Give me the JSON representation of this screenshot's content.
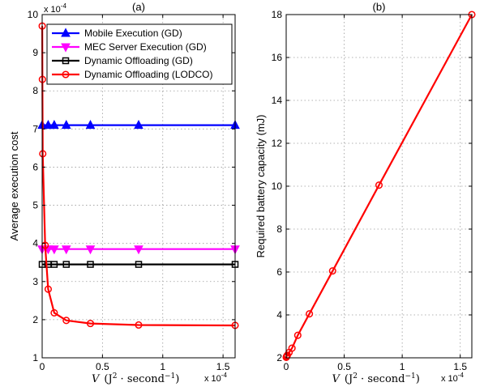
{
  "chart_data": [
    {
      "type": "line",
      "panel_title": "(a)",
      "ylabel": "Average execution cost",
      "xlabel": "V (J² · second⁻¹)",
      "xlabel_parts": {
        "var": "V",
        "open": "(J",
        "sq": "2",
        "mid": " · second",
        "neg1": "−1",
        "close": ")"
      },
      "x_multiplier": "x 10",
      "x_multiplier_exp": "-4",
      "y_multiplier": "x 10",
      "y_multiplier_exp": "-4",
      "xlim": [
        0,
        1.6
      ],
      "ylim": [
        1,
        10
      ],
      "xticks": [
        0,
        0.5,
        1,
        1.5
      ],
      "xtick_labels": [
        "0",
        "0.5",
        "1",
        "1.5"
      ],
      "yticks": [
        1,
        2,
        3,
        4,
        5,
        6,
        7,
        8,
        9,
        10
      ],
      "ytick_labels": [
        "1",
        "2",
        "3",
        "4",
        "5",
        "6",
        "7",
        "8",
        "9",
        "10"
      ],
      "grid": true,
      "legend_position": "top-right",
      "series": [
        {
          "name": "Mobile Execution (GD)",
          "color": "#0000ff",
          "marker": "triangle-up",
          "x": [
            0,
            0.05,
            0.1,
            0.2,
            0.4,
            0.8,
            1.6
          ],
          "y": [
            7.1,
            7.1,
            7.1,
            7.1,
            7.1,
            7.1,
            7.1
          ]
        },
        {
          "name": "MEC Server Execution (GD)",
          "color": "#ff00ff",
          "marker": "triangle-down",
          "x": [
            0,
            0.05,
            0.1,
            0.2,
            0.4,
            0.8,
            1.6
          ],
          "y": [
            3.85,
            3.85,
            3.85,
            3.85,
            3.85,
            3.85,
            3.85
          ]
        },
        {
          "name": "Dynamic Offloading (GD)",
          "color": "#000000",
          "marker": "square",
          "x": [
            0,
            0.05,
            0.1,
            0.2,
            0.4,
            0.8,
            1.6
          ],
          "y": [
            3.45,
            3.45,
            3.45,
            3.45,
            3.45,
            3.45,
            3.45
          ]
        },
        {
          "name": "Dynamic Offloading (LODCO)",
          "color": "#ff0000",
          "marker": "circle",
          "x": [
            0.0005,
            0.002,
            0.005,
            0.025,
            0.05,
            0.1,
            0.2,
            0.4,
            0.8,
            1.6
          ],
          "y": [
            9.7,
            8.3,
            6.35,
            3.95,
            2.8,
            2.18,
            1.98,
            1.9,
            1.86,
            1.85
          ]
        }
      ]
    },
    {
      "type": "line",
      "panel_title": "(b)",
      "ylabel": "Required battery capacity (mJ)",
      "xlabel": "V (J² · second⁻¹)",
      "xlabel_parts": {
        "var": "V",
        "open": "(J",
        "sq": "2",
        "mid": " · second",
        "neg1": "−1",
        "close": ")"
      },
      "x_multiplier": "x 10",
      "x_multiplier_exp": "-4",
      "xlim": [
        0,
        1.6
      ],
      "ylim": [
        2,
        18
      ],
      "xticks": [
        0,
        0.5,
        1,
        1.5
      ],
      "xtick_labels": [
        "0",
        "0.5",
        "1",
        "1.5"
      ],
      "yticks": [
        2,
        4,
        6,
        8,
        10,
        12,
        14,
        16,
        18
      ],
      "ytick_labels": [
        "2",
        "4",
        "6",
        "8",
        "10",
        "12",
        "14",
        "16",
        "18"
      ],
      "grid": true,
      "series": [
        {
          "color": "#ff0000",
          "marker": "circle",
          "x": [
            0.0005,
            0.002,
            0.005,
            0.01,
            0.025,
            0.05,
            0.1,
            0.2,
            0.4,
            0.8,
            1.6
          ],
          "y": [
            2.02,
            2.05,
            2.08,
            2.12,
            2.25,
            2.45,
            3.05,
            4.05,
            6.05,
            10.05,
            18.0
          ]
        }
      ]
    }
  ]
}
